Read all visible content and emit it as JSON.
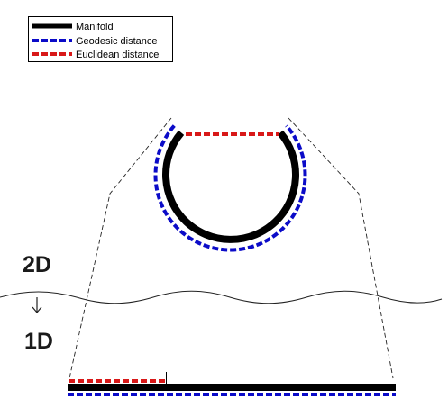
{
  "legend": {
    "items": [
      {
        "label": "Manifold",
        "color": "#000000",
        "style": "solid"
      },
      {
        "label": "Geodesic distance",
        "color": "#0b0bc8",
        "style": "dashed"
      },
      {
        "label": "Euclidean distance",
        "color": "#d81818",
        "style": "dashed"
      }
    ]
  },
  "labels": {
    "top_dimension": "2D",
    "bottom_dimension": "1D"
  },
  "colors": {
    "manifold": "#000000",
    "geodesic": "#0b0bc8",
    "euclidean": "#d81818",
    "guide": "#222222"
  },
  "icons": {
    "arrow": "down-arrow-icon"
  }
}
